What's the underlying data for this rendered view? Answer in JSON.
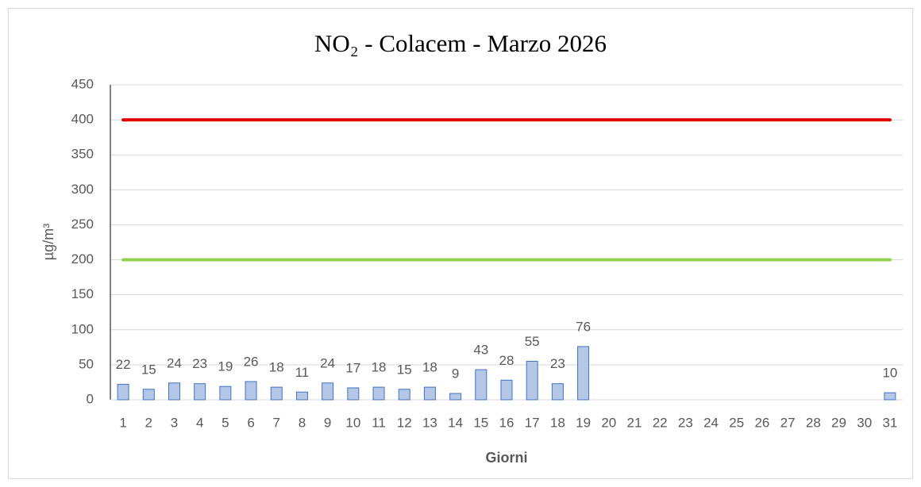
{
  "chart_data": {
    "type": "bar",
    "title": "NO₂ - Colacem - Marzo 2026",
    "x_label": "Giorni",
    "y_label": "µg/m³",
    "categories": [
      "1",
      "2",
      "3",
      "4",
      "5",
      "6",
      "7",
      "8",
      "9",
      "10",
      "11",
      "12",
      "13",
      "14",
      "15",
      "16",
      "17",
      "18",
      "19",
      "20",
      "21",
      "22",
      "23",
      "24",
      "25",
      "26",
      "27",
      "28",
      "29",
      "30",
      "31"
    ],
    "values": [
      22,
      15,
      24,
      23,
      19,
      26,
      18,
      11,
      24,
      17,
      18,
      15,
      18,
      9,
      43,
      28,
      55,
      23,
      76,
      null,
      null,
      null,
      null,
      null,
      null,
      null,
      null,
      null,
      null,
      null,
      10
    ],
    "color": "#b4c7e7",
    "edge_color": "#4472c4",
    "reference_lines": [
      {
        "value": 400,
        "color": "#e00000"
      },
      {
        "value": 200,
        "color": "#92d050"
      }
    ],
    "ylim": [
      0,
      450
    ],
    "yticks": [
      0,
      50,
      100,
      150,
      200,
      250,
      300,
      350,
      400,
      450
    ],
    "grid": true
  }
}
